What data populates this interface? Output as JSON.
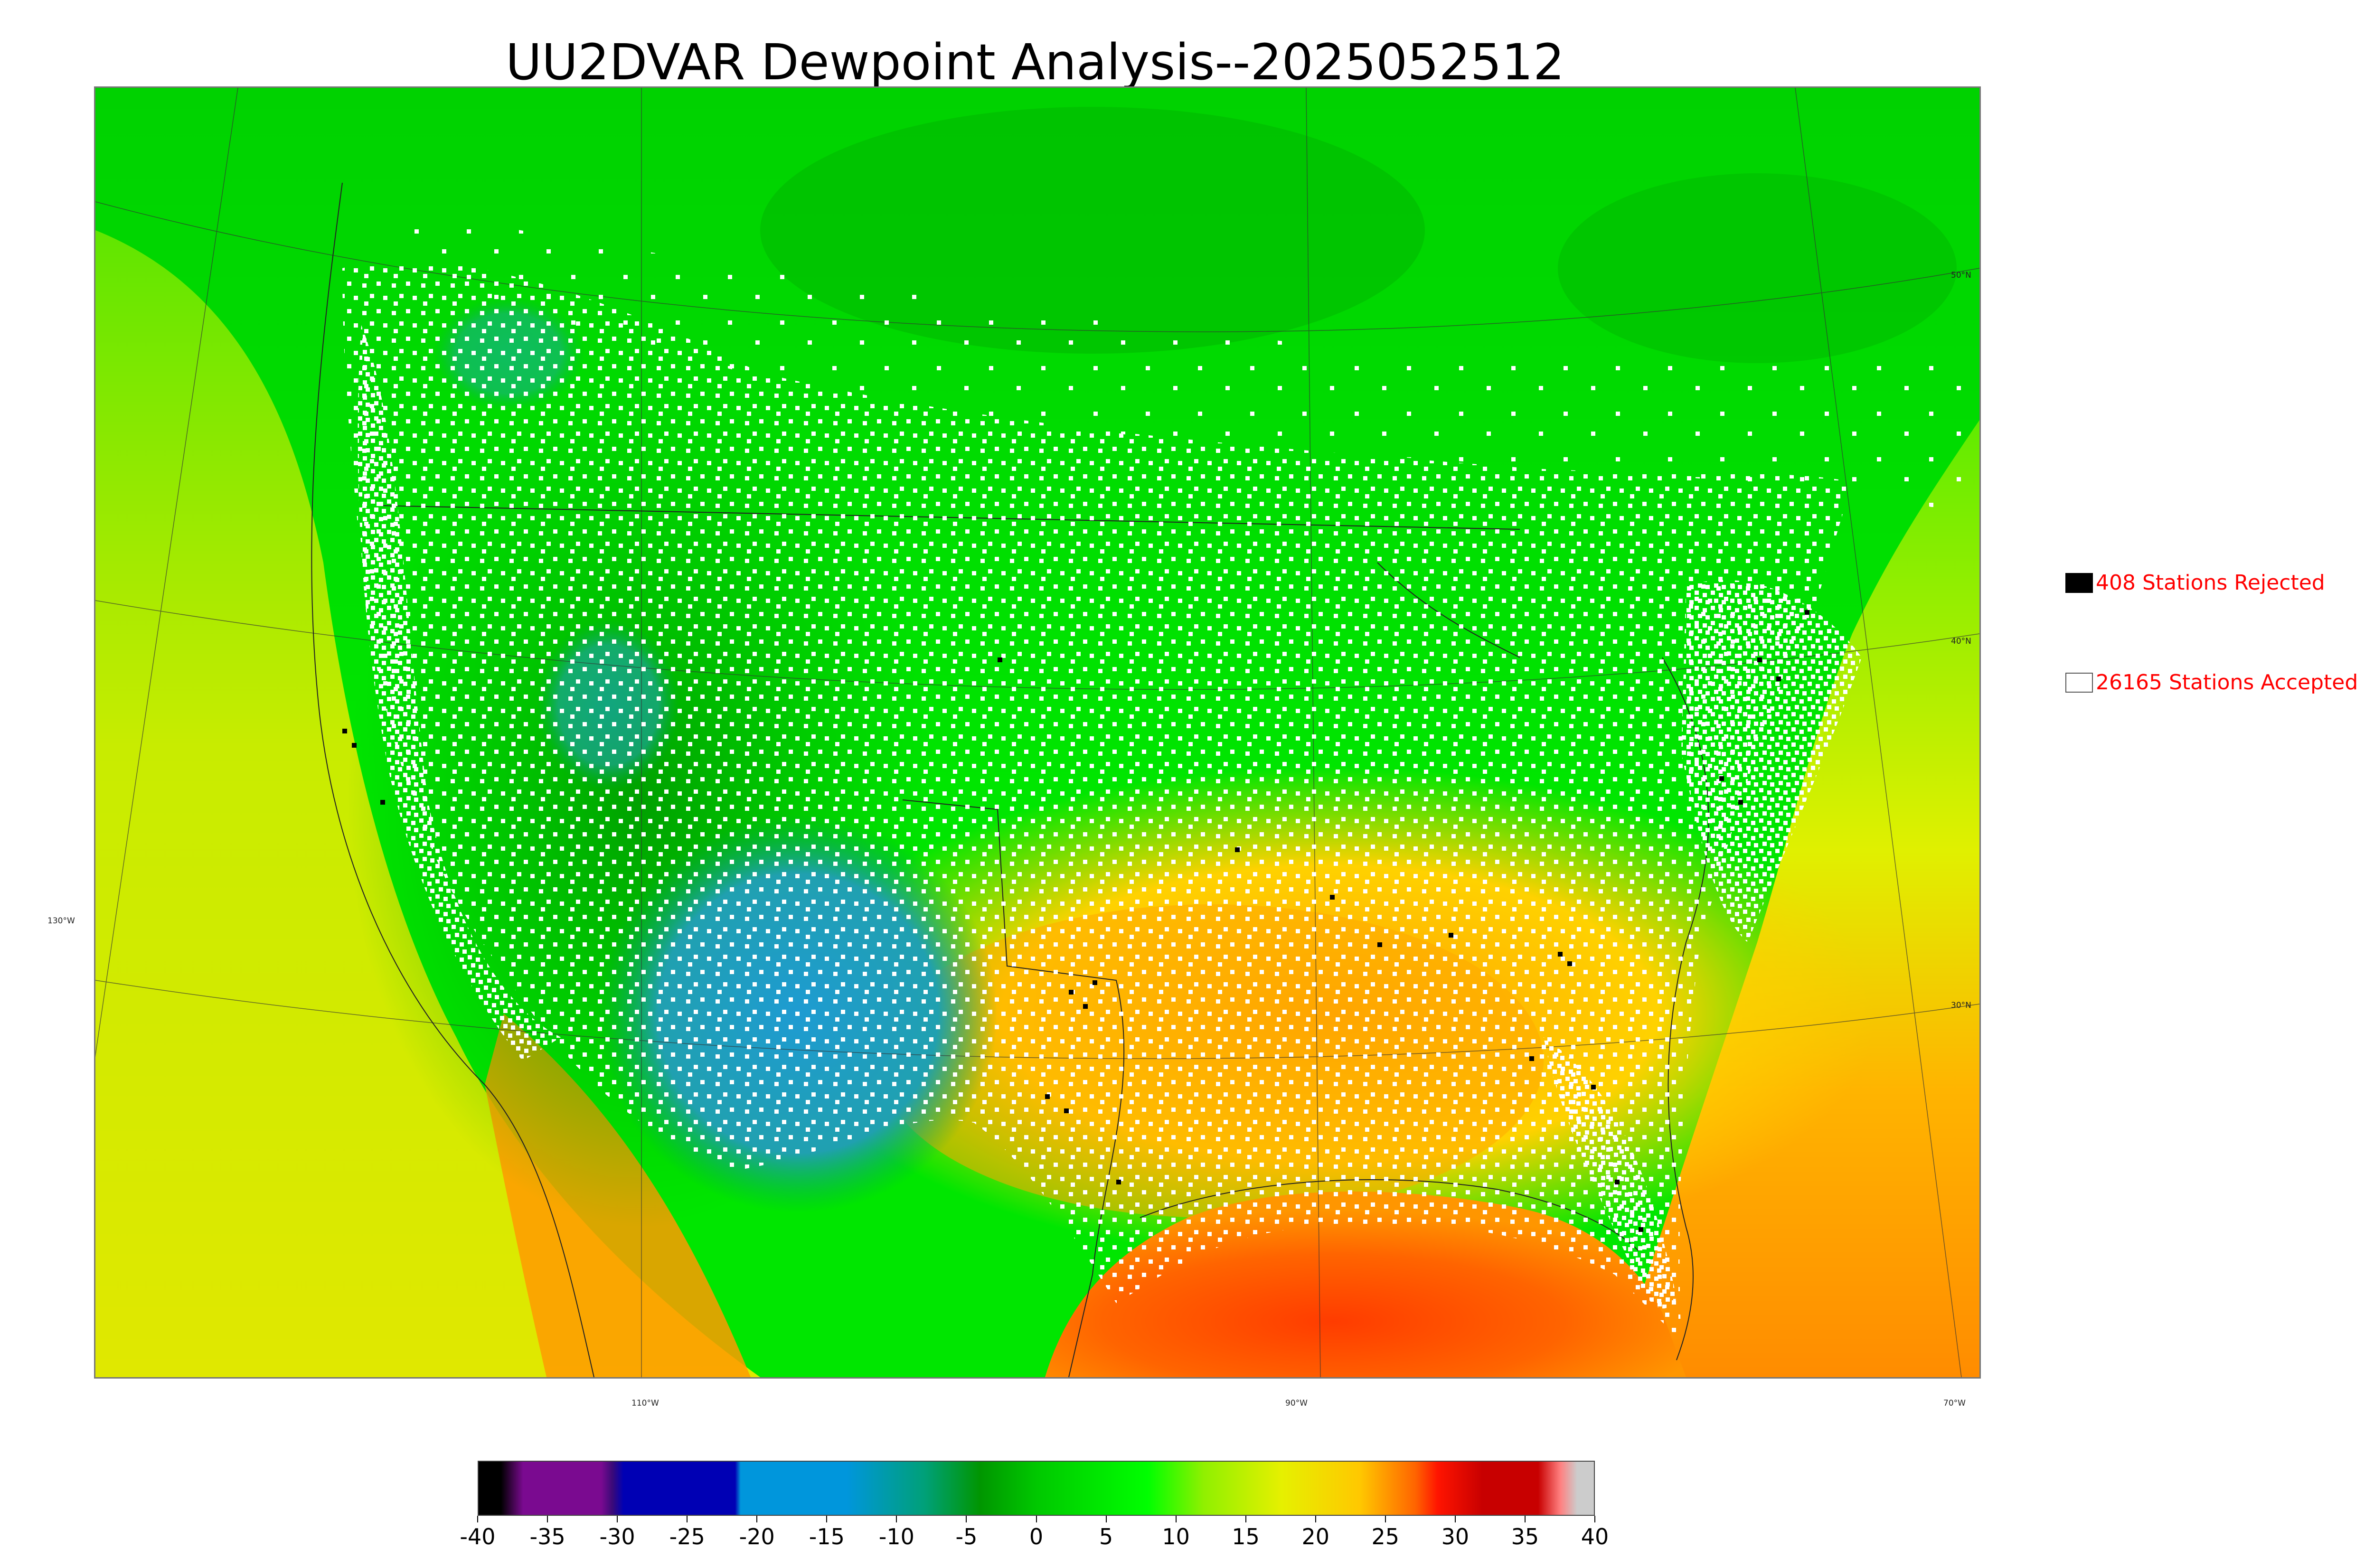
{
  "title": "UU2DVAR Dewpoint Analysis--2025052512",
  "lat_labels": [
    "50°N",
    "40°N",
    "30°N"
  ],
  "lon_labels": [
    "130°W",
    "110°W",
    "90°W",
    "70°W"
  ],
  "legend": {
    "rejected": {
      "text": "408 Stations Rejected",
      "box_color": "#000000"
    },
    "accepted": {
      "text": "26165 Stations Accepted",
      "box_color": "#ffffff"
    },
    "text_color": "#ff0000"
  },
  "colorbar": {
    "ticks": [
      "-40",
      "-35",
      "-30",
      "-25",
      "-20",
      "-15",
      "-10",
      "-5",
      "0",
      "5",
      "10",
      "15",
      "20",
      "25",
      "30",
      "35",
      "40"
    ],
    "colors": {
      "minus40": "#000000",
      "minus35": "#7a0a90",
      "minus30": "#3a0a78",
      "minus27": "#0000b4",
      "minus20": "#0096dc",
      "minus10": "#00a078",
      "minus5": "#009600",
      "zero": "#00c800",
      "five": "#00ff00",
      "ten": "#90f000",
      "fifteen": "#e6f000",
      "twenty": "#ffc800",
      "twentyfive": "#ff6400",
      "thirty": "#ff1400",
      "thirtyfive": "#c80000",
      "forty": "#cccccc"
    }
  },
  "map_palette": {
    "land_green": "#00d200",
    "dry_blue": "#1e9bd2",
    "ocean_yellow": "#d8e600",
    "gulf_red": "#ff5000",
    "station_accepted": "#ffffff",
    "station_rejected": "#000000"
  }
}
